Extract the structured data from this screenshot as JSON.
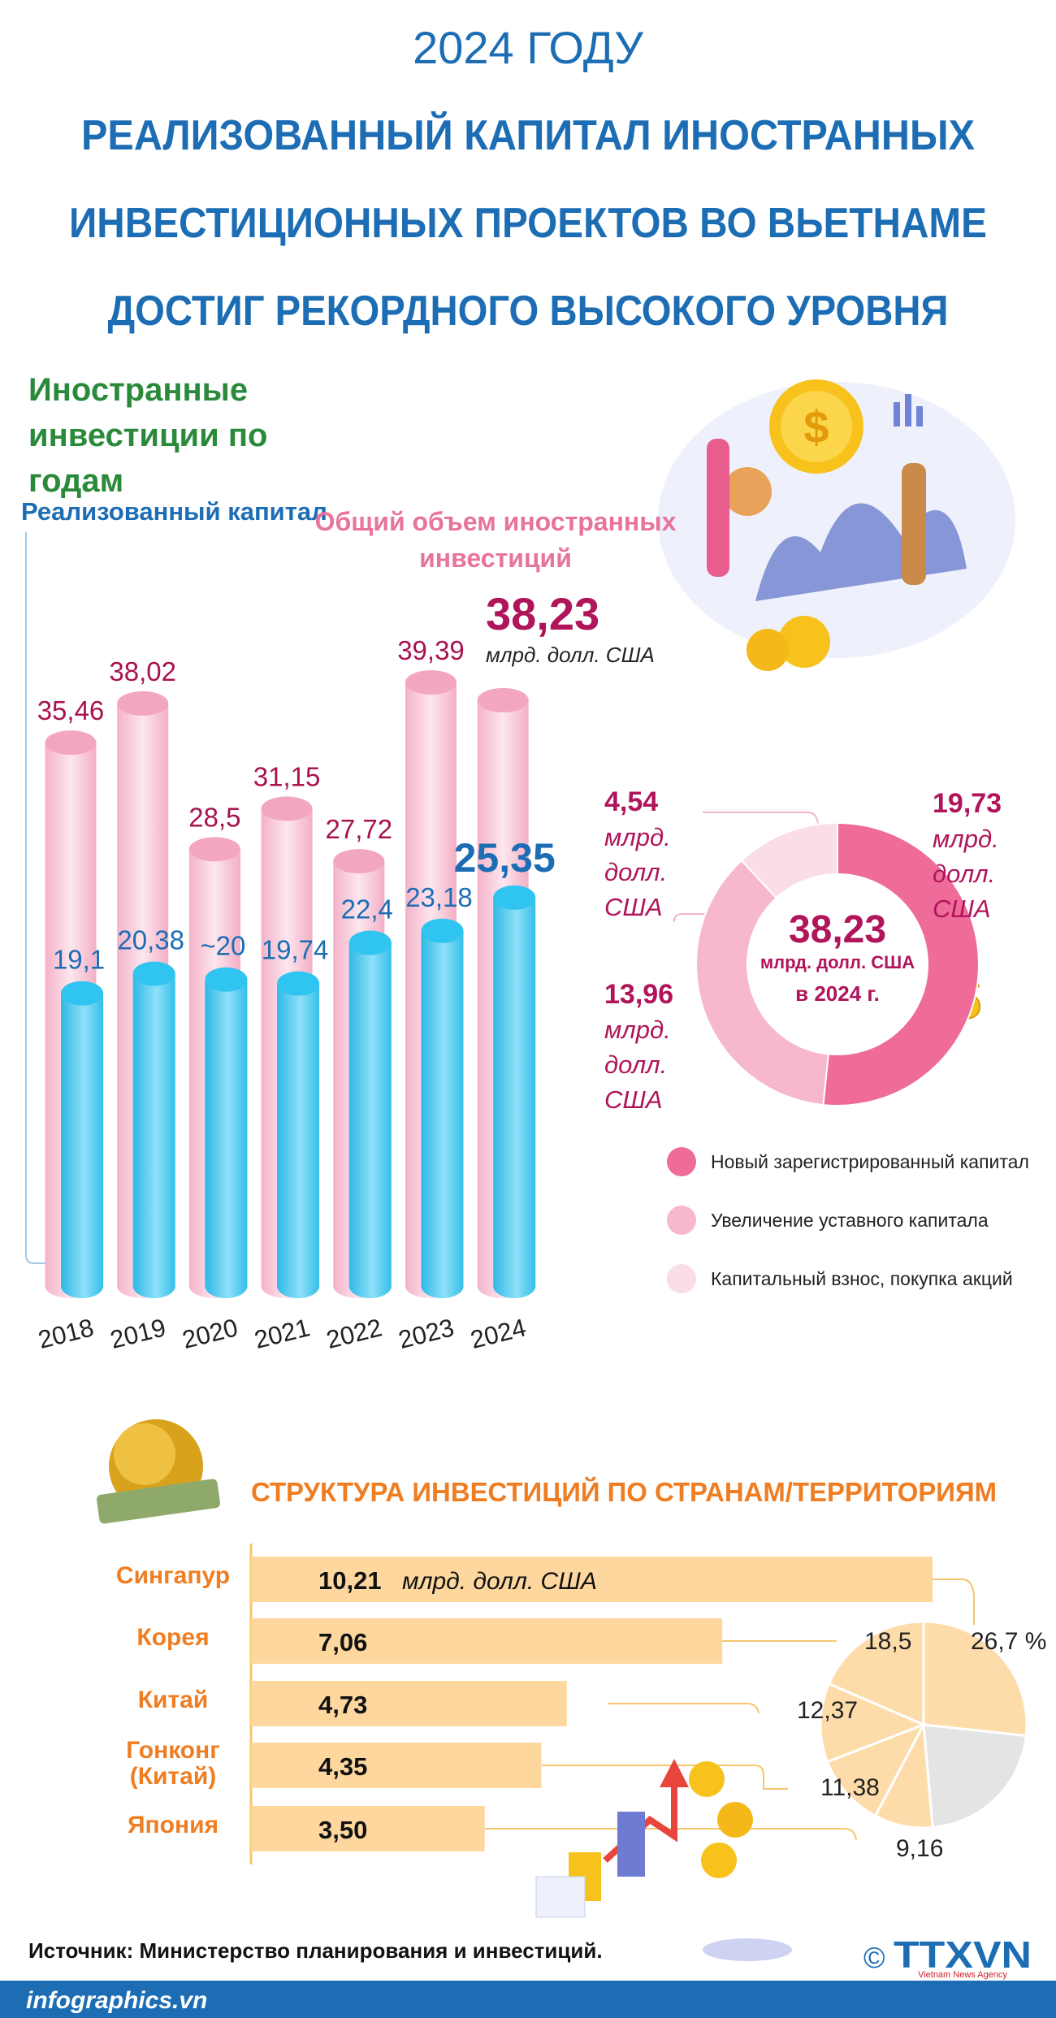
{
  "header": {
    "year_line": "2024 ГОДУ",
    "title_lines": [
      "РЕАЛИЗОВАННЫЙ КАПИТАЛ ИНОСТРАННЫХ",
      "ИНВЕСТИЦИОННЫХ ПРОЕКТОВ ВО ВЬЕТНАМЕ",
      "ДОСТИГ РЕКОРДНОГО ВЫСОКОГО УРОВНЯ"
    ]
  },
  "chart_data": [
    {
      "type": "cylinder_bar",
      "title": "Иностранные инвестиции по годам",
      "categories": [
        "2018",
        "2019",
        "2020",
        "2021",
        "2022",
        "2023",
        "2024"
      ],
      "series": [
        {
          "name": "Реализованный капитал",
          "color": "#30c4f0",
          "values": [
            19.1,
            20.38,
            20,
            19.74,
            22.4,
            23.18,
            25.35
          ],
          "value_labels": [
            "19,1",
            "20,38",
            "~20",
            "19,74",
            "22,4",
            "23,18",
            "25,35"
          ]
        },
        {
          "name": "Общий объем иностранных инвестиций",
          "color": "#f5b5cb",
          "values": [
            35.46,
            38.02,
            28.5,
            31.15,
            27.72,
            39.39,
            38.23
          ],
          "value_labels": [
            "35,46",
            "38,02",
            "28,5",
            "31,15",
            "27,72",
            "39,39",
            "38,23"
          ],
          "unit": "млрд. долл. США"
        }
      ]
    },
    {
      "type": "donut",
      "categories": [
        "Новый зарегистрированный капитал",
        "Увеличение уставного капитала",
        "Капитальный взнос, покупка акций"
      ],
      "values": [
        19.73,
        13.96,
        4.54
      ],
      "value_labels": [
        "19,73",
        "13,96",
        "4,54"
      ],
      "colors": [
        "#ee6b9a",
        "#f7b8cc",
        "#fbdde7"
      ],
      "unit": "млрд. долл. США",
      "center": {
        "value": 38.23,
        "label": "38,23",
        "unit": "млрд. долл. США",
        "note": "в 2024 г."
      }
    },
    {
      "type": "hbar",
      "title": "СТРУКТУРА ИНВЕСТИЦИЙ ПО СТРАНАМ/ТЕРРИТОРИЯМ",
      "categories": [
        "Сингапур",
        "Корея",
        "Китай",
        "Гонконг (Китай)",
        "Япония"
      ],
      "values": [
        10.21,
        7.06,
        4.73,
        4.35,
        3.5
      ],
      "value_labels": [
        "10,21",
        "7,06",
        "4,73",
        "4,35",
        "3,50"
      ],
      "unit": "млрд. долл. США",
      "color": "#fdd79e"
    },
    {
      "type": "pie",
      "categories": [
        "Сингапур",
        "Корея",
        "Китай",
        "Гонконг (Китай)",
        "Япония",
        null
      ],
      "values": [
        26.7,
        18.5,
        12.37,
        11.38,
        9.16,
        21.89
      ],
      "value_labels": [
        "26,7 %",
        "18,5",
        "12,37",
        "11,38",
        "9,16",
        null
      ],
      "colors": [
        "#fddcaa",
        "#fddcaa",
        "#fddcaa",
        "#fddcaa",
        "#fddcaa",
        "#e4e4e4"
      ]
    }
  ],
  "footer": {
    "source": "Источник: Министерство планирования и инвестиций.",
    "site": "infographics.vn",
    "logo": "TTXVN",
    "copyright": "©",
    "agency": "Vietnam News Agency"
  }
}
